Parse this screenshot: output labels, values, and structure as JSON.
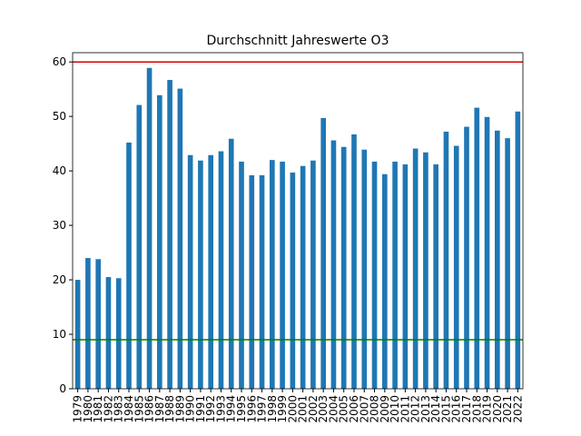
{
  "chart_data": {
    "type": "bar",
    "title": "Durchschnitt Jahreswerte O3",
    "categories": [
      "1979",
      "1980",
      "1981",
      "1982",
      "1983",
      "1984",
      "1985",
      "1986",
      "1987",
      "1988",
      "1989",
      "1990",
      "1991",
      "1992",
      "1993",
      "1994",
      "1995",
      "1996",
      "1997",
      "1998",
      "1999",
      "2000",
      "2001",
      "2002",
      "2003",
      "2004",
      "2005",
      "2006",
      "2007",
      "2008",
      "2009",
      "2010",
      "2011",
      "2012",
      "2013",
      "2014",
      "2015",
      "2016",
      "2017",
      "2018",
      "2019",
      "2020",
      "2021",
      "2022"
    ],
    "values": [
      20,
      24,
      23.8,
      20.5,
      20.3,
      45.2,
      52.1,
      58.9,
      53.9,
      56.7,
      55.1,
      42.9,
      41.9,
      42.9,
      43.6,
      45.9,
      41.7,
      39.2,
      39.2,
      42,
      41.7,
      39.7,
      40.9,
      41.9,
      49.7,
      45.6,
      44.4,
      46.7,
      43.9,
      41.7,
      39.4,
      41.7,
      41.2,
      44.1,
      43.4,
      41.2,
      47.2,
      44.6,
      48.1,
      51.6,
      49.9,
      47.4,
      46,
      50.9
    ],
    "color": "#1f77b4",
    "ylim": [
      0,
      61.7
    ],
    "yticks": [
      0,
      10,
      20,
      30,
      40,
      50,
      60
    ],
    "hlines": [
      {
        "value": 60,
        "color": "#d40000"
      },
      {
        "value": 9,
        "color": "#008000"
      }
    ]
  }
}
